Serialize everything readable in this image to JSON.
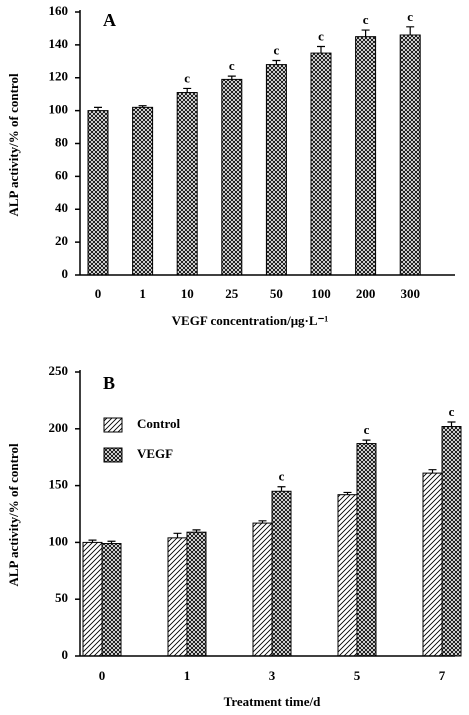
{
  "chart_data": [
    {
      "type": "bar",
      "panel_label": "A",
      "ylabel": "ALP activity/% of control",
      "xlabel": "VEGF concentration/μg·L⁻¹",
      "categories": [
        "0",
        "1",
        "10",
        "25",
        "50",
        "100",
        "200",
        "300"
      ],
      "values": [
        100,
        102,
        111,
        119,
        128,
        135,
        145,
        146
      ],
      "errors": [
        2,
        1,
        2.5,
        2,
        2.5,
        4,
        4,
        5
      ],
      "significance": [
        null,
        null,
        "c",
        "c",
        "c",
        "c",
        "c",
        "c"
      ],
      "color": "#000000",
      "pattern": "crosshatch",
      "ylim": [
        0,
        160
      ],
      "yticks": [
        0,
        20,
        40,
        60,
        80,
        100,
        120,
        140,
        160
      ]
    },
    {
      "type": "bar",
      "panel_label": "B",
      "ylabel": "ALP activity/% of control",
      "xlabel": "Treatment time/d",
      "categories": [
        "0",
        "1",
        "3",
        "5",
        "7"
      ],
      "series": [
        {
          "name": "Control",
          "color": "#000000",
          "pattern": "diagonal",
          "values": [
            100,
            104,
            117,
            142,
            161
          ],
          "errors": [
            2,
            4,
            2,
            2,
            3
          ],
          "significance": [
            null,
            null,
            null,
            null,
            null
          ]
        },
        {
          "name": "VEGF",
          "color": "#000000",
          "pattern": "crosshatch",
          "values": [
            99,
            109,
            145,
            187,
            202
          ],
          "errors": [
            2,
            2,
            4,
            3,
            4
          ],
          "significance": [
            null,
            null,
            "c",
            "c",
            "c"
          ]
        }
      ],
      "legend": "upper left",
      "ylim": [
        0,
        250
      ],
      "yticks": [
        0,
        50,
        100,
        150,
        200,
        250
      ]
    }
  ]
}
